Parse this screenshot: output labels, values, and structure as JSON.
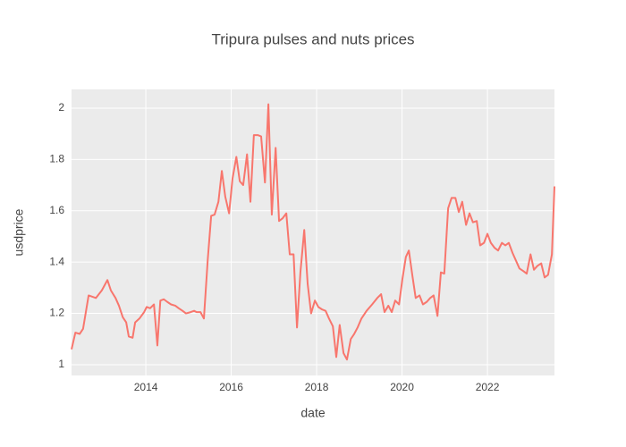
{
  "chart_data": {
    "type": "line",
    "title": "Tripura pulses and nuts prices",
    "x_label": "date",
    "y_label": "usdprice",
    "series": [
      {
        "color": "#f8766d",
        "x": [
          2012.26,
          2012.35,
          2012.45,
          2012.53,
          2012.66,
          2012.83,
          2012.97,
          2013.1,
          2013.18,
          2013.29,
          2013.37,
          2013.46,
          2013.54,
          2013.6,
          2013.69,
          2013.75,
          2013.85,
          2013.96,
          2014.02,
          2014.1,
          2014.19,
          2014.27,
          2014.34,
          2014.42,
          2014.5,
          2014.59,
          2014.69,
          2014.77,
          2014.86,
          2014.94,
          2015.05,
          2015.13,
          2015.19,
          2015.28,
          2015.36,
          2015.45,
          2015.53,
          2015.61,
          2015.7,
          2015.78,
          2015.86,
          2015.95,
          2016.03,
          2016.12,
          2016.2,
          2016.28,
          2016.37,
          2016.45,
          2016.53,
          2016.62,
          2016.7,
          2016.79,
          2016.87,
          2016.95,
          2017.04,
          2017.12,
          2017.2,
          2017.29,
          2017.37,
          2017.46,
          2017.54,
          2017.62,
          2017.71,
          2017.79,
          2017.87,
          2017.96,
          2018.04,
          2018.13,
          2018.21,
          2018.29,
          2018.38,
          2018.46,
          2018.54,
          2018.63,
          2018.71,
          2018.8,
          2018.88,
          2018.96,
          2019.05,
          2019.17,
          2019.3,
          2019.42,
          2019.51,
          2019.59,
          2019.68,
          2019.76,
          2019.84,
          2019.93,
          2020.01,
          2020.09,
          2020.16,
          2020.24,
          2020.32,
          2020.41,
          2020.49,
          2020.58,
          2020.66,
          2020.74,
          2020.83,
          2020.91,
          2020.99,
          2021.08,
          2021.16,
          2021.25,
          2021.33,
          2021.41,
          2021.5,
          2021.58,
          2021.66,
          2021.75,
          2021.83,
          2021.92,
          2022.0,
          2022.08,
          2022.17,
          2022.25,
          2022.34,
          2022.42,
          2022.5,
          2022.59,
          2022.67,
          2022.75,
          2022.84,
          2022.92,
          2023.01,
          2023.09,
          2023.17,
          2023.26,
          2023.34,
          2023.42,
          2023.51,
          2023.57
        ],
        "values": [
          1.06,
          1.125,
          1.12,
          1.14,
          1.27,
          1.26,
          1.29,
          1.33,
          1.29,
          1.26,
          1.23,
          1.185,
          1.165,
          1.11,
          1.105,
          1.165,
          1.18,
          1.205,
          1.225,
          1.22,
          1.235,
          1.075,
          1.25,
          1.255,
          1.245,
          1.235,
          1.23,
          1.22,
          1.21,
          1.2,
          1.205,
          1.21,
          1.205,
          1.205,
          1.18,
          1.41,
          1.58,
          1.585,
          1.635,
          1.755,
          1.655,
          1.59,
          1.725,
          1.81,
          1.715,
          1.7,
          1.82,
          1.635,
          1.895,
          1.895,
          1.89,
          1.71,
          2.015,
          1.585,
          1.845,
          1.56,
          1.57,
          1.59,
          1.43,
          1.43,
          1.145,
          1.36,
          1.525,
          1.315,
          1.2,
          1.25,
          1.225,
          1.215,
          1.21,
          1.18,
          1.15,
          1.03,
          1.155,
          1.045,
          1.02,
          1.1,
          1.12,
          1.145,
          1.18,
          1.21,
          1.235,
          1.26,
          1.275,
          1.205,
          1.23,
          1.205,
          1.25,
          1.235,
          1.335,
          1.42,
          1.445,
          1.35,
          1.26,
          1.27,
          1.235,
          1.245,
          1.26,
          1.27,
          1.19,
          1.36,
          1.355,
          1.61,
          1.65,
          1.65,
          1.595,
          1.635,
          1.545,
          1.59,
          1.555,
          1.56,
          1.465,
          1.475,
          1.51,
          1.475,
          1.455,
          1.445,
          1.475,
          1.465,
          1.475,
          1.435,
          1.405,
          1.375,
          1.365,
          1.355,
          1.43,
          1.37,
          1.385,
          1.395,
          1.34,
          1.35,
          1.43,
          1.695
        ]
      }
    ],
    "xlim": [
      2012.26,
      2023.57
    ],
    "xticks": [
      2014,
      2016,
      2018,
      2020,
      2022
    ],
    "ylim": [
      0.958,
      2.073
    ],
    "yticks": [
      1,
      1.2,
      1.4,
      1.6,
      1.8,
      2
    ],
    "grid": true
  }
}
